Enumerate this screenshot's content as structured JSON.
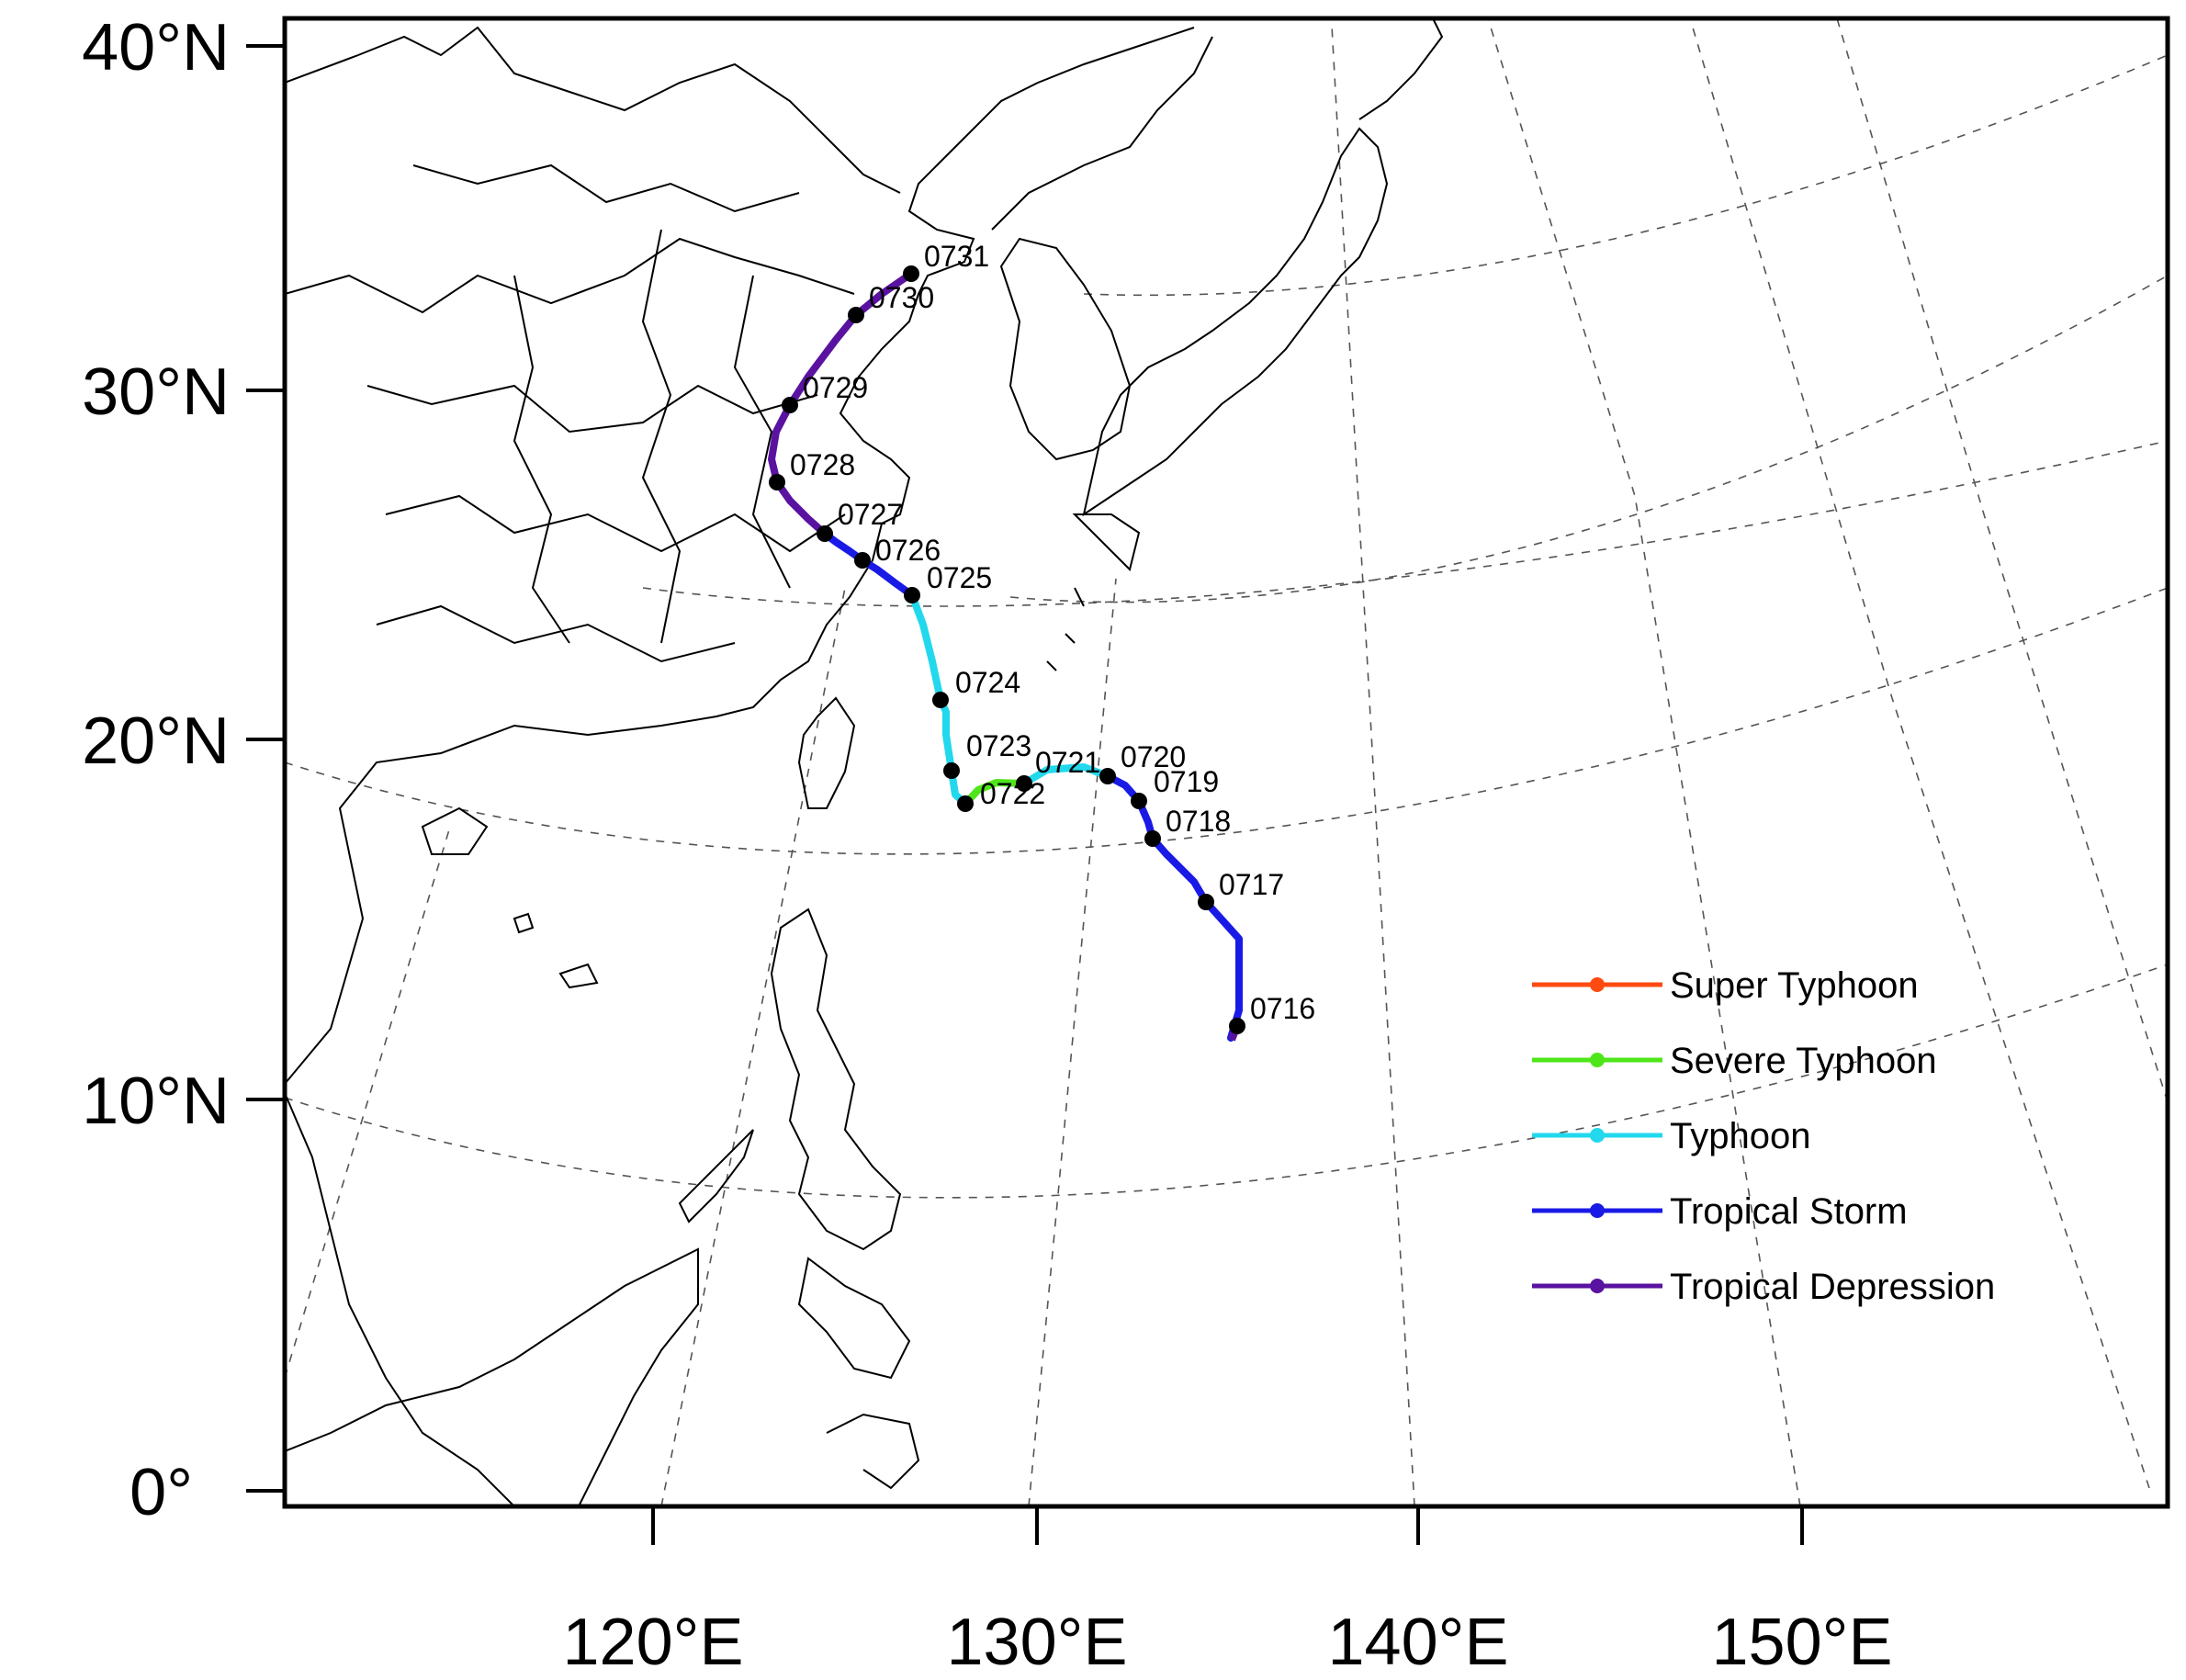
{
  "map": {
    "y_ticks": [
      "40°N",
      "30°N",
      "20°N",
      "10°N",
      "0°"
    ],
    "x_ticks": [
      "120°E",
      "130°E",
      "140°E",
      "150°E"
    ]
  },
  "track": {
    "points": [
      {
        "label": "0716",
        "grade": "Tropical Storm"
      },
      {
        "label": "0717",
        "grade": "Tropical Storm"
      },
      {
        "label": "0718",
        "grade": "Tropical Storm"
      },
      {
        "label": "0719",
        "grade": "Tropical Storm"
      },
      {
        "label": "0720",
        "grade": "Tropical Storm"
      },
      {
        "label": "0721",
        "grade": "Typhoon"
      },
      {
        "label": "0722",
        "grade": "Severe Typhoon"
      },
      {
        "label": "0723",
        "grade": "Typhoon"
      },
      {
        "label": "0724",
        "grade": "Typhoon"
      },
      {
        "label": "0725",
        "grade": "Typhoon"
      },
      {
        "label": "0726",
        "grade": "Tropical Storm"
      },
      {
        "label": "0727",
        "grade": "Tropical Storm"
      },
      {
        "label": "0728",
        "grade": "Tropical Depression"
      },
      {
        "label": "0729",
        "grade": "Tropical Depression"
      },
      {
        "label": "0730",
        "grade": "Tropical Depression"
      },
      {
        "label": "0731",
        "grade": "Tropical Depression"
      }
    ]
  },
  "legend": {
    "items": [
      {
        "label": "Super Typhoon",
        "color": "#ff4a12"
      },
      {
        "label": "Severe Typhoon",
        "color": "#4ee61a"
      },
      {
        "label": "Typhoon",
        "color": "#22d8ec"
      },
      {
        "label": "Tropical Storm",
        "color": "#1a1ae6"
      },
      {
        "label": "Tropical Depression",
        "color": "#5a12a0"
      }
    ]
  }
}
